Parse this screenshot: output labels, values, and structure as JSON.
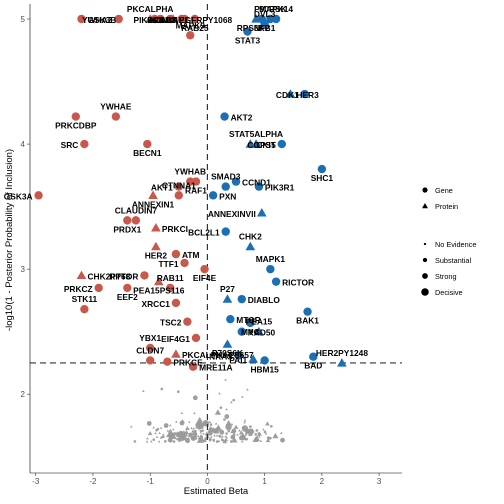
{
  "chart_data": {
    "type": "scatter",
    "xlabel": "Estimated Beta",
    "ylabel": "-log10(1 - Posterior Probability of Inclusion)",
    "x_ticks": [
      "-3",
      "-2",
      "-1",
      "0",
      "1",
      "2",
      "3"
    ],
    "y_ticks": [
      "2",
      "3",
      "4",
      "5"
    ],
    "xlim": [
      -3.1,
      3.4
    ],
    "ylim": [
      1.37,
      5.12
    ],
    "vertical_reference_line_x": 0,
    "horizontal_reference_line_y": 2.25,
    "grid": false,
    "legend_position": "right",
    "colors": {
      "negative": "#c8584c",
      "positive": "#1a6fb5",
      "non_significant": "#9a9a9a",
      "reference_line": "#333333"
    },
    "legend": {
      "shape_items": [
        {
          "label": "Gene",
          "shape": "circle"
        },
        {
          "label": "Protein",
          "shape": "triangle"
        }
      ],
      "size_items": [
        {
          "label": "No Evidence",
          "size": 1
        },
        {
          "label": "Substantial",
          "size": 2
        },
        {
          "label": "Strong",
          "size": 3
        },
        {
          "label": "Decisive",
          "size": 4
        }
      ]
    },
    "labeled_points": [
      {
        "label": "PKCALPHA",
        "x": -1.0,
        "y": 5.0,
        "shape": "triangle",
        "size": 4
      },
      {
        "label": "BAP1",
        "x": -0.82,
        "y": 5.0,
        "shape": "circle",
        "size": 4
      },
      {
        "label": "ERBB2",
        "x": -0.45,
        "y": 5.0,
        "shape": "circle",
        "size": 4
      },
      {
        "label": "RPS6KB1",
        "x": 0.85,
        "y": 5.0,
        "shape": "triangle",
        "size": 4
      },
      {
        "label": "P90RSK",
        "x": 1.1,
        "y": 5.0,
        "shape": "circle",
        "size": 4
      },
      {
        "label": "GSK3B",
        "x": -2.2,
        "y": 5.0,
        "shape": "circle",
        "size": 4
      },
      {
        "label": "YWHAZ",
        "x": -1.55,
        "y": 5.0,
        "shape": "circle",
        "size": 4
      },
      {
        "label": "NF2",
        "x": 0.95,
        "y": 5.0,
        "shape": "circle",
        "size": 4
      },
      {
        "label": "MAPK14",
        "x": 1.2,
        "y": 5.0,
        "shape": "circle",
        "size": 4
      },
      {
        "label": "LCK",
        "x": -0.92,
        "y": 5.0,
        "shape": "circle",
        "size": 4
      },
      {
        "label": "PIK3CA",
        "x": -0.65,
        "y": 5.0,
        "shape": "circle",
        "size": 4
      },
      {
        "label": "RAB25",
        "x": -0.22,
        "y": 5.0,
        "shape": "circle",
        "size": 4
      },
      {
        "label": "DVL3",
        "x": 1.0,
        "y": 4.96,
        "shape": "circle",
        "size": 4
      },
      {
        "label": "EGFRPY1068",
        "x": -0.6,
        "y": 5.0,
        "shape": "triangle",
        "size": 4
      },
      {
        "label": "ACACA",
        "x": -0.4,
        "y": 5.0,
        "shape": "circle",
        "size": 4
      },
      {
        "label": "STAT3",
        "x": 0.7,
        "y": 4.9,
        "shape": "circle",
        "size": 4
      },
      {
        "label": "MAPK9",
        "x": -0.3,
        "y": 4.87,
        "shape": "circle",
        "size": 4
      },
      {
        "label": "HER3",
        "x": 1.45,
        "y": 4.4,
        "shape": "triangle",
        "size": 4
      },
      {
        "label": "CDK1",
        "x": 1.7,
        "y": 4.4,
        "shape": "circle",
        "size": 4
      },
      {
        "label": "PRKCDBP",
        "x": -2.3,
        "y": 4.22,
        "shape": "circle",
        "size": 4
      },
      {
        "label": "YWHAE",
        "x": -1.6,
        "y": 4.22,
        "shape": "circle",
        "size": 4
      },
      {
        "label": "AKT2",
        "x": 0.3,
        "y": 4.22,
        "shape": "circle",
        "size": 4
      },
      {
        "label": "SRC",
        "x": -2.15,
        "y": 4.0,
        "shape": "circle",
        "size": 4
      },
      {
        "label": "BECN1",
        "x": -1.05,
        "y": 4.0,
        "shape": "circle",
        "size": 4
      },
      {
        "label": "STAT5ALPHA",
        "x": 0.85,
        "y": 4.0,
        "shape": "triangle",
        "size": 4
      },
      {
        "label": "CKIT",
        "x": 0.75,
        "y": 4.0,
        "shape": "triangle",
        "size": 4
      },
      {
        "label": "COPS5",
        "x": 1.3,
        "y": 4.0,
        "shape": "circle",
        "size": 4
      },
      {
        "label": "SHC1",
        "x": 2.0,
        "y": 3.8,
        "shape": "circle",
        "size": 4
      },
      {
        "label": "YWHAB",
        "x": -0.3,
        "y": 3.7,
        "shape": "circle",
        "size": 4
      },
      {
        "label": "CCND1",
        "x": 0.5,
        "y": 3.7,
        "shape": "circle",
        "size": 4
      },
      {
        "label": "AKT1",
        "x": -0.5,
        "y": 3.66,
        "shape": "circle",
        "size": 4
      },
      {
        "label": "RAF1",
        "x": -0.2,
        "y": 3.7,
        "shape": "circle",
        "size": 4
      },
      {
        "label": "SMAD3",
        "x": 0.32,
        "y": 3.66,
        "shape": "circle",
        "size": 4
      },
      {
        "label": "PIK3R1",
        "x": 0.9,
        "y": 3.66,
        "shape": "circle",
        "size": 4
      },
      {
        "label": "GSK3A",
        "x": -2.95,
        "y": 3.59,
        "shape": "circle",
        "size": 4
      },
      {
        "label": "ANNEXIN1",
        "x": -0.95,
        "y": 3.59,
        "shape": "triangle",
        "size": 4
      },
      {
        "label": "CTNNA1",
        "x": -0.5,
        "y": 3.59,
        "shape": "circle",
        "size": 4
      },
      {
        "label": "PXN",
        "x": 0.1,
        "y": 3.59,
        "shape": "circle",
        "size": 4
      },
      {
        "label": "ANNEXINVII",
        "x": 0.95,
        "y": 3.45,
        "shape": "triangle",
        "size": 4
      },
      {
        "label": "PRDX1",
        "x": -1.4,
        "y": 3.39,
        "shape": "circle",
        "size": 4
      },
      {
        "label": "CLAUDIN7",
        "x": -1.25,
        "y": 3.39,
        "shape": "circle",
        "size": 4
      },
      {
        "label": "PRKCI",
        "x": -0.9,
        "y": 3.33,
        "shape": "triangle",
        "size": 4
      },
      {
        "label": "BCL2L1",
        "x": 0.32,
        "y": 3.3,
        "shape": "circle",
        "size": 4
      },
      {
        "label": "HER2",
        "x": -0.9,
        "y": 3.18,
        "shape": "triangle",
        "size": 4
      },
      {
        "label": "CHK2",
        "x": 0.75,
        "y": 3.18,
        "shape": "triangle",
        "size": 4
      },
      {
        "label": "ATM",
        "x": -0.55,
        "y": 3.12,
        "shape": "circle",
        "size": 4
      },
      {
        "label": "TTF1",
        "x": -0.4,
        "y": 3.05,
        "shape": "circle",
        "size": 4
      },
      {
        "label": "EIF4E",
        "x": -0.05,
        "y": 3.0,
        "shape": "circle",
        "size": 4
      },
      {
        "label": "MAPK1",
        "x": 1.1,
        "y": 3.0,
        "shape": "circle",
        "size": 4
      },
      {
        "label": "CHK2PT68",
        "x": -2.2,
        "y": 2.95,
        "shape": "triangle",
        "size": 4
      },
      {
        "label": "RPTOR",
        "x": -1.1,
        "y": 2.95,
        "shape": "circle",
        "size": 4
      },
      {
        "label": "PEA15PS116",
        "x": -0.85,
        "y": 2.9,
        "shape": "triangle",
        "size": 4
      },
      {
        "label": "RAB11",
        "x": -0.65,
        "y": 2.85,
        "shape": "circle",
        "size": 4
      },
      {
        "label": "RICTOR",
        "x": 1.2,
        "y": 2.9,
        "shape": "circle",
        "size": 4
      },
      {
        "label": "PRKCZ",
        "x": -1.9,
        "y": 2.85,
        "shape": "circle",
        "size": 4
      },
      {
        "label": "EEF2",
        "x": -1.4,
        "y": 2.85,
        "shape": "circle",
        "size": 4
      },
      {
        "label": "P27",
        "x": 0.35,
        "y": 2.76,
        "shape": "triangle",
        "size": 4
      },
      {
        "label": "DIABLO",
        "x": 0.6,
        "y": 2.76,
        "shape": "circle",
        "size": 4
      },
      {
        "label": "XRCC1",
        "x": -0.55,
        "y": 2.73,
        "shape": "circle",
        "size": 4
      },
      {
        "label": "BAK1",
        "x": 1.75,
        "y": 2.66,
        "shape": "circle",
        "size": 4
      },
      {
        "label": "STK11",
        "x": -2.15,
        "y": 2.68,
        "shape": "circle",
        "size": 4
      },
      {
        "label": "MTOR",
        "x": 0.4,
        "y": 2.6,
        "shape": "circle",
        "size": 4
      },
      {
        "label": "TSC2",
        "x": -0.35,
        "y": 2.58,
        "shape": "circle",
        "size": 4
      },
      {
        "label": "MYC",
        "x": 0.75,
        "y": 2.57,
        "shape": "circle",
        "size": 4
      },
      {
        "label": "PEA15",
        "x": 0.9,
        "y": 2.5,
        "shape": "triangle",
        "size": 4
      },
      {
        "label": "RAD50",
        "x": 0.6,
        "y": 2.5,
        "shape": "circle",
        "size": 4
      },
      {
        "label": "EIF4G1",
        "x": -0.2,
        "y": 2.45,
        "shape": "circle",
        "size": 4
      },
      {
        "label": "P70S6K",
        "x": 0.35,
        "y": 2.4,
        "shape": "triangle",
        "size": 4
      },
      {
        "label": "YBX1",
        "x": -1.0,
        "y": 2.37,
        "shape": "circle",
        "size": 4
      },
      {
        "label": "PKCALPHAPS657",
        "x": -0.55,
        "y": 2.32,
        "shape": "triangle",
        "size": 4
      },
      {
        "label": "NRAS",
        "x": 0.55,
        "y": 2.31,
        "shape": "circle",
        "size": 4
      },
      {
        "label": "BAD",
        "x": 1.85,
        "y": 2.3,
        "shape": "circle",
        "size": 4
      },
      {
        "label": "CLDN7",
        "x": -1.0,
        "y": 2.27,
        "shape": "circle",
        "size": 4
      },
      {
        "label": "PRKCE",
        "x": -0.7,
        "y": 2.26,
        "shape": "circle",
        "size": 4
      },
      {
        "label": "PAI1",
        "x": 0.8,
        "y": 2.28,
        "shape": "triangle",
        "size": 4
      },
      {
        "label": "HBM15",
        "x": 1.0,
        "y": 2.27,
        "shape": "circle",
        "size": 4
      },
      {
        "label": "HER2PY1248",
        "x": 2.35,
        "y": 2.25,
        "shape": "triangle",
        "size": 4
      },
      {
        "label": "MRE11A",
        "x": -0.25,
        "y": 2.22,
        "shape": "circle",
        "size": 4
      }
    ]
  }
}
